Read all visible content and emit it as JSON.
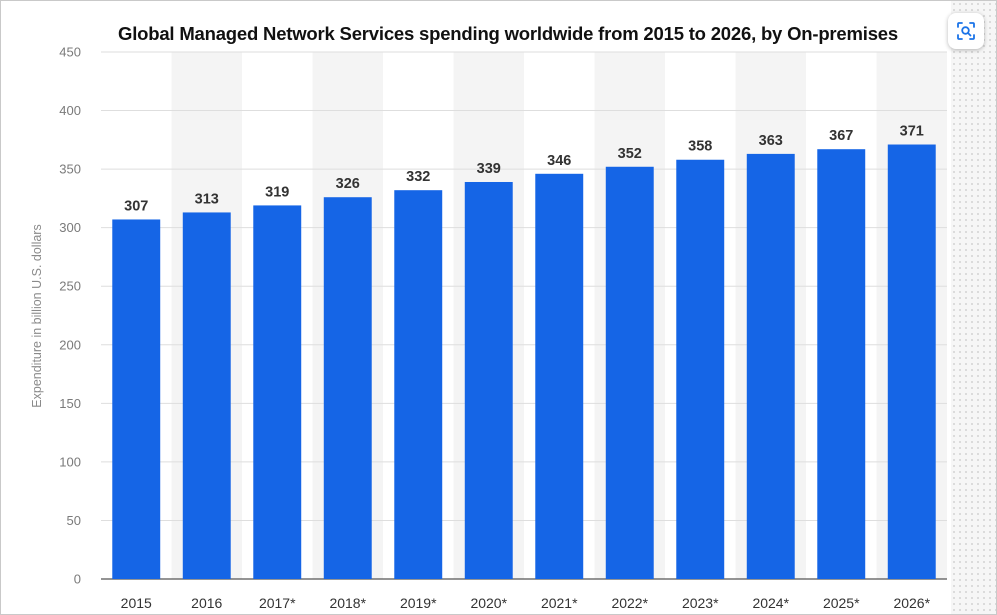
{
  "chart_data": {
    "type": "bar",
    "title": "Global Managed Network Services spending worldwide from 2015 to 2026, by On-premises",
    "ylabel": "Expenditure in billion U.S. dollars",
    "xlabel": "",
    "categories": [
      "2015",
      "2016",
      "2017*",
      "2018*",
      "2019*",
      "2020*",
      "2021*",
      "2022*",
      "2023*",
      "2024*",
      "2025*",
      "2026*"
    ],
    "values": [
      307,
      313,
      319,
      326,
      332,
      339,
      346,
      352,
      358,
      363,
      367,
      371
    ],
    "ylim": [
      0,
      450
    ],
    "yticks": [
      0,
      50,
      100,
      150,
      200,
      250,
      300,
      350,
      400,
      450
    ],
    "grid": true,
    "bar_color": "#1565e6",
    "band_color": "#f4f4f4"
  },
  "toolbar": {
    "lens_icon": "visual-search-icon"
  }
}
